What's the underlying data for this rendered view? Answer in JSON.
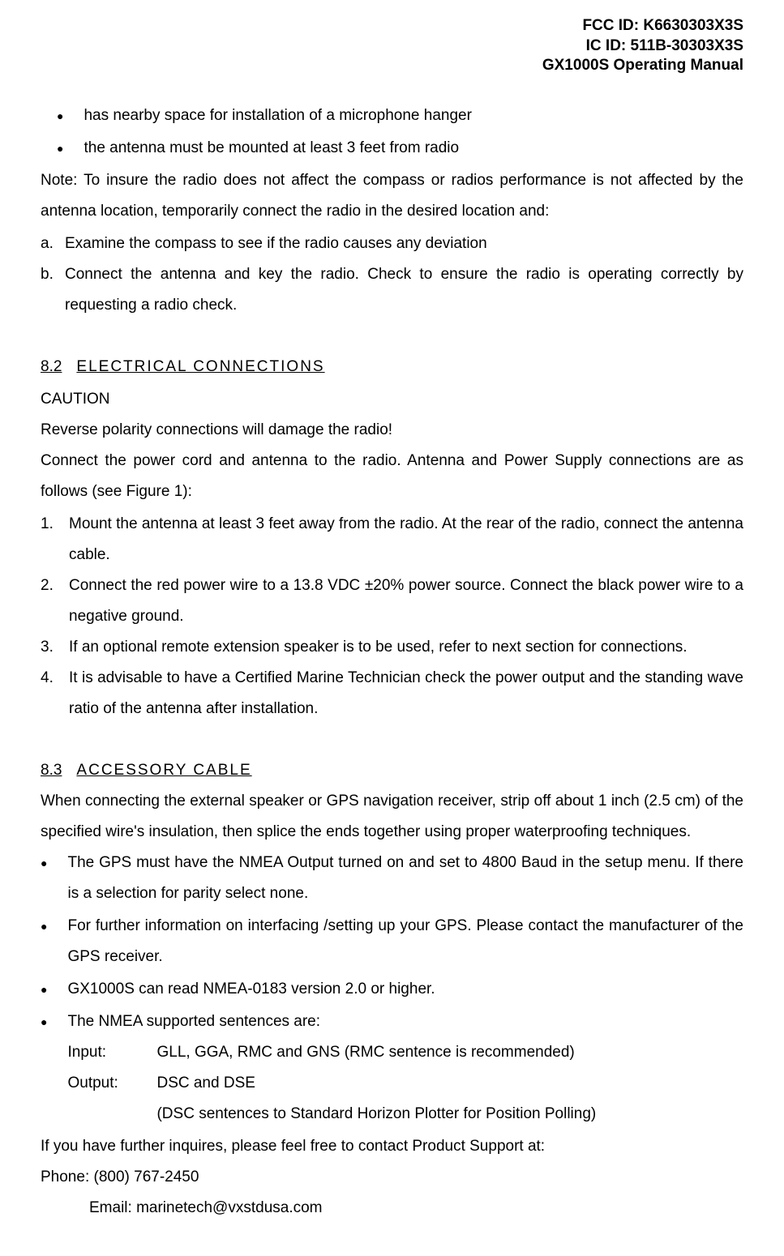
{
  "header": {
    "fcc": "FCC ID: K6630303X3S",
    "ic": "IC ID: 511B-30303X3S",
    "manual": "GX1000S Operating Manual"
  },
  "topBullets": [
    "has nearby space for installation of a microphone hanger",
    "the antenna must be mounted at least 3 feet from radio"
  ],
  "note": "Note: To insure the radio does not affect the compass or radios performance is not affected by the antenna location, temporarily connect the radio in the desired location and:",
  "lettered": [
    {
      "marker": "a.",
      "text": "Examine the compass to see if the radio causes any deviation"
    },
    {
      "marker": "b.",
      "text": "Connect the antenna and key the radio. Check to ensure the radio is operating correctly by requesting a radio check."
    }
  ],
  "section82": {
    "num": "8.2",
    "title": "ELECTRICAL CONNECTIONS",
    "caution": "CAUTION",
    "warn": "Reverse polarity connections will damage the radio!",
    "intro": "Connect the power cord and antenna to the radio. Antenna and Power Supply connections are as follows (see Figure 1):",
    "steps": [
      {
        "marker": "1.",
        "text": "Mount the antenna at least 3 feet away from the radio. At the rear of the radio, connect the antenna cable."
      },
      {
        "marker": "2.",
        "text": "Connect the red power wire to a 13.8 VDC ±20% power source. Connect the black power wire to a negative ground."
      },
      {
        "marker": "3.",
        "text": "If an optional remote extension speaker is to be used, refer to next section for connections."
      },
      {
        "marker": "4.",
        "text": "It is advisable to have a Certified Marine Technician check the power output and the standing wave ratio of the antenna after installation."
      }
    ]
  },
  "section83": {
    "num": "8.3",
    "title": "ACCESSORY CABLE",
    "intro": "When connecting the external speaker or GPS navigation receiver, strip off about 1 inch (2.5 cm) of the specified wire's insulation, then splice the ends together using proper waterproofing techniques.",
    "bullets": [
      "The GPS must have the NMEA Output turned on and set to 4800 Baud in the setup menu. If there is a selection for parity select none.",
      "For further information on interfacing /setting up your GPS. Please contact the manufacturer of the GPS receiver.",
      "GX1000S can read NMEA-0183 version 2.0 or higher.",
      "The NMEA supported sentences are:"
    ],
    "nmea": {
      "inputLabel": "Input:",
      "inputText": "GLL, GGA, RMC and GNS (RMC sentence is recommended)",
      "outputLabel": "Output:",
      "outputText": "DSC and DSE",
      "outputNote": "(DSC sentences to Standard Horizon Plotter for Position Polling)"
    },
    "closing": "If you have further inquires, please feel free to contact Product Support at:",
    "phone": "Phone: (800) 767-2450",
    "email": "Email: marinetech@vxstdusa.com"
  }
}
